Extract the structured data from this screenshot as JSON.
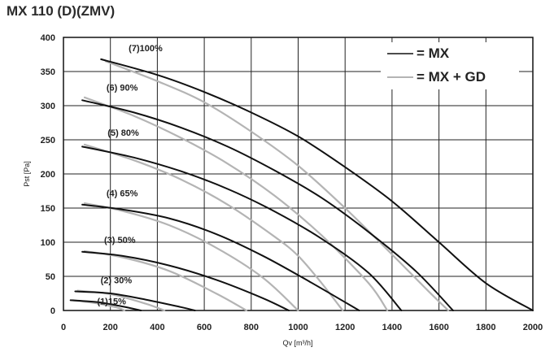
{
  "title": "MX 110 (D)(ZMV)",
  "chart_data": {
    "type": "line",
    "xlabel": "Qv [m³/h]",
    "ylabel": "Pst [Pa]",
    "xlim": [
      0,
      2000
    ],
    "ylim": [
      0,
      400
    ],
    "xticks": [
      0,
      200,
      400,
      600,
      800,
      1000,
      1200,
      1400,
      1600,
      1800,
      2000
    ],
    "yticks": [
      0,
      50,
      100,
      150,
      200,
      250,
      300,
      350,
      400
    ],
    "grid": true,
    "legend_position": "top-right",
    "legend": [
      {
        "label": "= MX",
        "color": "#111111"
      },
      {
        "label": "= MX + GD",
        "color": "#b4b4b4"
      }
    ],
    "curve_labels": [
      {
        "text": "(7)100%",
        "x": 350,
        "y": 380
      },
      {
        "text": "(6) 90%",
        "x": 250,
        "y": 322
      },
      {
        "text": "(5) 80%",
        "x": 255,
        "y": 256
      },
      {
        "text": "(4) 65%",
        "x": 250,
        "y": 167
      },
      {
        "text": "(3) 50%",
        "x": 240,
        "y": 99
      },
      {
        "text": "(2) 30%",
        "x": 225,
        "y": 40
      },
      {
        "text": "(1)15%",
        "x": 205,
        "y": 9
      }
    ],
    "series": [
      {
        "name": "MX",
        "curve": "(7)",
        "color": "#111111",
        "points": [
          [
            160,
            368
          ],
          [
            400,
            345
          ],
          [
            600,
            320
          ],
          [
            800,
            290
          ],
          [
            1000,
            255
          ],
          [
            1200,
            210
          ],
          [
            1400,
            160
          ],
          [
            1600,
            100
          ],
          [
            1800,
            40
          ],
          [
            2000,
            0
          ]
        ]
      },
      {
        "name": "MX + GD",
        "curve": "(7)",
        "color": "#b4b4b4",
        "points": [
          [
            180,
            365
          ],
          [
            400,
            336
          ],
          [
            600,
            305
          ],
          [
            800,
            262
          ],
          [
            1000,
            212
          ],
          [
            1200,
            150
          ],
          [
            1400,
            82
          ],
          [
            1550,
            30
          ],
          [
            1640,
            0
          ]
        ]
      },
      {
        "name": "MX",
        "curve": "(6)",
        "color": "#111111",
        "points": [
          [
            80,
            308
          ],
          [
            300,
            290
          ],
          [
            500,
            268
          ],
          [
            700,
            240
          ],
          [
            900,
            205
          ],
          [
            1100,
            165
          ],
          [
            1300,
            115
          ],
          [
            1500,
            58
          ],
          [
            1660,
            0
          ]
        ]
      },
      {
        "name": "MX + GD",
        "curve": "(6)",
        "color": "#b4b4b4",
        "points": [
          [
            90,
            312
          ],
          [
            300,
            285
          ],
          [
            500,
            253
          ],
          [
            700,
            215
          ],
          [
            900,
            168
          ],
          [
            1100,
            110
          ],
          [
            1300,
            40
          ],
          [
            1380,
            0
          ]
        ]
      },
      {
        "name": "MX",
        "curve": "(5)",
        "color": "#111111",
        "points": [
          [
            80,
            240
          ],
          [
            300,
            224
          ],
          [
            500,
            204
          ],
          [
            700,
            178
          ],
          [
            900,
            145
          ],
          [
            1100,
            105
          ],
          [
            1300,
            55
          ],
          [
            1440,
            0
          ]
        ]
      },
      {
        "name": "MX + GD",
        "curve": "(5)",
        "color": "#b4b4b4",
        "points": [
          [
            90,
            243
          ],
          [
            300,
            220
          ],
          [
            500,
            192
          ],
          [
            700,
            155
          ],
          [
            900,
            108
          ],
          [
            1000,
            80
          ],
          [
            1100,
            40
          ],
          [
            1190,
            0
          ]
        ]
      },
      {
        "name": "MX",
        "curve": "(4)",
        "color": "#111111",
        "points": [
          [
            80,
            155
          ],
          [
            250,
            148
          ],
          [
            450,
            135
          ],
          [
            650,
            112
          ],
          [
            850,
            80
          ],
          [
            1050,
            42
          ],
          [
            1260,
            0
          ]
        ]
      },
      {
        "name": "MX + GD",
        "curve": "(4)",
        "color": "#b4b4b4",
        "points": [
          [
            90,
            157
          ],
          [
            250,
            146
          ],
          [
            450,
            125
          ],
          [
            650,
            92
          ],
          [
            850,
            48
          ],
          [
            1000,
            0
          ]
        ]
      },
      {
        "name": "MX",
        "curve": "(3)",
        "color": "#111111",
        "points": [
          [
            80,
            86
          ],
          [
            250,
            80
          ],
          [
            450,
            66
          ],
          [
            650,
            45
          ],
          [
            850,
            18
          ],
          [
            960,
            0
          ]
        ]
      },
      {
        "name": "MX + GD",
        "curve": "(3)",
        "color": "#b4b4b4",
        "points": [
          [
            90,
            87
          ],
          [
            250,
            78
          ],
          [
            450,
            58
          ],
          [
            650,
            25
          ],
          [
            780,
            0
          ]
        ]
      },
      {
        "name": "MX",
        "curve": "(2)",
        "color": "#111111",
        "points": [
          [
            50,
            28
          ],
          [
            200,
            25
          ],
          [
            350,
            16
          ],
          [
            500,
            5
          ],
          [
            560,
            0
          ]
        ]
      },
      {
        "name": "MX + GD",
        "curve": "(2)",
        "color": "#b4b4b4",
        "points": [
          [
            60,
            29
          ],
          [
            200,
            24
          ],
          [
            350,
            10
          ],
          [
            430,
            0
          ]
        ]
      },
      {
        "name": "MX",
        "curve": "(1)",
        "color": "#111111",
        "points": [
          [
            30,
            15
          ],
          [
            150,
            12
          ],
          [
            250,
            6
          ],
          [
            330,
            0
          ]
        ]
      },
      {
        "name": "MX + GD",
        "curve": "(1)",
        "color": "#b4b4b4",
        "points": [
          [
            40,
            15
          ],
          [
            150,
            10
          ],
          [
            230,
            4
          ],
          [
            260,
            0
          ]
        ]
      }
    ]
  }
}
